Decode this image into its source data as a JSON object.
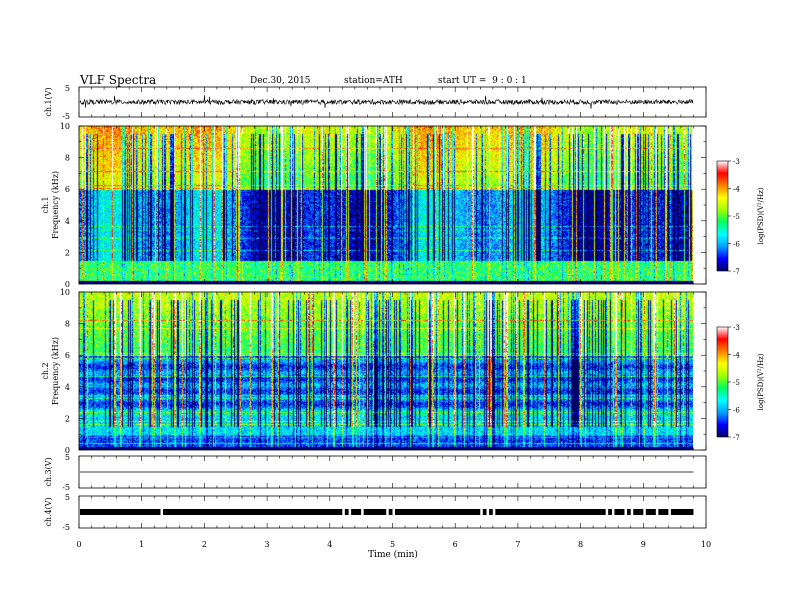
{
  "header": {
    "title": "VLF Spectra",
    "date": "Dec.30, 2015",
    "station": "station=ATH",
    "start": "start UT =  9 : 0 : 1"
  },
  "chart_data": [
    {
      "type": "line",
      "id": "ch1-waveform",
      "ylabel": "ch.1(V)",
      "ylim": [
        -5,
        5
      ],
      "yticks": [
        5,
        -5
      ],
      "description_values": {
        "baseline_v": 0,
        "typical_amplitude_v": 0.8,
        "max_spike_v": 2.5
      }
    },
    {
      "type": "heatmap",
      "id": "ch1-spectrogram",
      "ylabel": "Frequency (kHz)",
      "channel_label": "ch.1",
      "ylim": [
        0,
        10
      ],
      "yticks": [
        0,
        2,
        4,
        6,
        8,
        10
      ],
      "colorbar": {
        "label": "log(PSD)(V²/Hz)",
        "range": [
          -7,
          -3
        ],
        "ticks": [
          -3,
          -4,
          -5,
          -6,
          -7
        ]
      }
    },
    {
      "type": "heatmap",
      "id": "ch2-spectrogram",
      "ylabel": "Frequency (kHz)",
      "channel_label": "ch.2",
      "ylim": [
        0,
        10
      ],
      "yticks": [
        0,
        2,
        4,
        6,
        8,
        10
      ],
      "colorbar": {
        "label": "log(PSD)(V²/Hz)",
        "range": [
          -7,
          -3
        ],
        "ticks": [
          -3,
          -4,
          -5,
          -6,
          -7
        ]
      }
    },
    {
      "type": "line",
      "id": "ch3-waveform",
      "ylabel": "ch.3(V)",
      "ylim": [
        -5,
        5
      ],
      "yticks": [
        5,
        -5
      ],
      "description_values": {
        "level_v": 0
      }
    },
    {
      "type": "line",
      "id": "ch4-waveform",
      "ylabel": "ch.4(V)",
      "ylim": [
        -5,
        5
      ],
      "yticks": [
        5,
        -5
      ],
      "description_values": {
        "level_v": 0,
        "gap_minutes": [
          1.3,
          4.2,
          4.3,
          4.5,
          4.9,
          5.0,
          6.4,
          6.5,
          6.6,
          8.4,
          8.5,
          8.7,
          8.8,
          9.0,
          9.2,
          9.4
        ]
      }
    }
  ],
  "x_axis": {
    "label": "Time (min)",
    "xlim": [
      0,
      10
    ],
    "ticks": [
      "0",
      "1",
      "2",
      "3",
      "4",
      "5",
      "6",
      "7",
      "8",
      "9",
      "10"
    ],
    "data_end_min": 9.8
  },
  "colors": {
    "scale": [
      "#000060",
      "#0000ff",
      "#00a0ff",
      "#00ffff",
      "#00ff60",
      "#a0ff00",
      "#ffff00",
      "#ff8000",
      "#ff0000",
      "#ffffff"
    ]
  }
}
